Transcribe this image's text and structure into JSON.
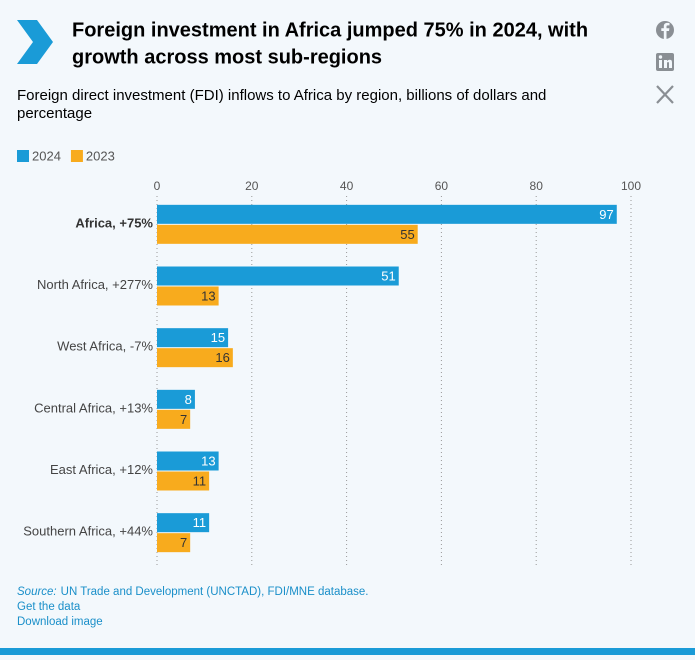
{
  "chart_data": {
    "type": "bar",
    "orientation": "horizontal",
    "title": "Foreign investment in Africa jumped 75% in 2024, with growth across most sub-regions",
    "subtitle": "Foreign direct investment (FDI) inflows to Africa by region, billions of dollars and percentage",
    "categories": [
      "Africa, +75%",
      "North Africa, +277%",
      "West Africa, -7%",
      "Central Africa, +13%",
      "East Africa, +12%",
      "Southern Africa, +44%"
    ],
    "series": [
      {
        "name": "2024",
        "color": "#1a9bd7",
        "values": [
          97,
          51,
          15,
          8,
          13,
          11
        ]
      },
      {
        "name": "2023",
        "color": "#f8ab1d",
        "values": [
          55,
          13,
          16,
          7,
          11,
          7
        ]
      }
    ],
    "xlim": [
      0,
      100
    ],
    "xticks": [
      0,
      20,
      40,
      60,
      80,
      100
    ],
    "grid": true,
    "source": {
      "label": "Source:",
      "text": "UN Trade and Development (UNCTAD), FDI/MNE database."
    },
    "links": [
      "Get the data",
      "Download image"
    ]
  }
}
